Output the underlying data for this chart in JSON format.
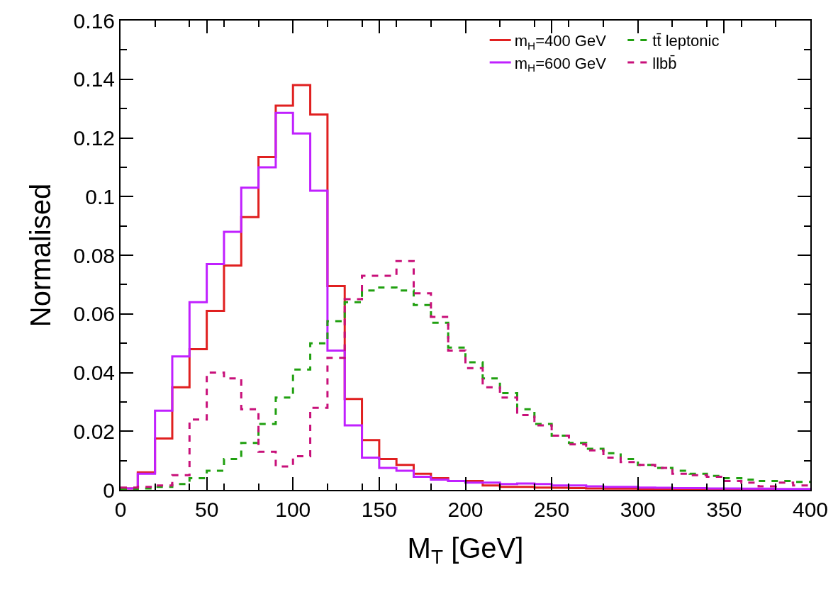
{
  "chart_data": {
    "type": "histogram",
    "xlabel": "M$_{T}$ [GeV]",
    "ylabel": "Normalised",
    "bins": [
      0,
      10,
      20,
      30,
      40,
      50,
      60,
      70,
      80,
      90,
      100,
      110,
      120,
      130,
      140,
      150,
      160,
      170,
      180,
      190,
      200,
      210,
      220,
      230,
      240,
      250,
      260,
      270,
      280,
      290,
      300,
      310,
      320,
      330,
      340,
      350,
      360,
      370,
      380,
      390,
      400
    ],
    "series": [
      {
        "name": "m$_{H}$=400 GeV",
        "color": "#e02020",
        "line_style": "solid",
        "values": [
          0.0005,
          0.006,
          0.0175,
          0.035,
          0.048,
          0.061,
          0.0765,
          0.093,
          0.1135,
          0.131,
          0.138,
          0.128,
          0.0695,
          0.031,
          0.017,
          0.0105,
          0.0085,
          0.0055,
          0.004,
          0.003,
          0.003,
          0.0015,
          0.001,
          0.001,
          0.0008,
          0.0007,
          0.0006,
          0.0005,
          0.0004,
          0.0004,
          0.0003,
          0.0003,
          0.0002,
          0.0002,
          0.0002,
          0.0002,
          0.0001,
          0.0001,
          0.0001,
          0.0001
        ]
      },
      {
        "name": "m$_{H}$=600 GeV",
        "color": "#c020ff",
        "line_style": "solid",
        "values": [
          0.0005,
          0.0055,
          0.027,
          0.0455,
          0.064,
          0.077,
          0.088,
          0.103,
          0.11,
          0.1285,
          0.1215,
          0.102,
          0.0475,
          0.022,
          0.011,
          0.0075,
          0.0065,
          0.0045,
          0.0035,
          0.003,
          0.0025,
          0.0025,
          0.002,
          0.0022,
          0.002,
          0.0015,
          0.0015,
          0.0012,
          0.001,
          0.001,
          0.0008,
          0.0007,
          0.0006,
          0.0006,
          0.0005,
          0.0005,
          0.0004,
          0.0004,
          0.0003,
          0.0003
        ]
      },
      {
        "name": "tt̄ leptonic",
        "color": "#20a010",
        "line_style": "dashed",
        "values": [
          0.0002,
          0.0005,
          0.001,
          0.002,
          0.004,
          0.0065,
          0.0105,
          0.016,
          0.0225,
          0.0315,
          0.041,
          0.05,
          0.0575,
          0.064,
          0.068,
          0.069,
          0.068,
          0.063,
          0.057,
          0.0485,
          0.0435,
          0.038,
          0.033,
          0.0275,
          0.0225,
          0.0185,
          0.016,
          0.014,
          0.0125,
          0.0105,
          0.0085,
          0.0075,
          0.0065,
          0.0055,
          0.0048,
          0.004,
          0.0035,
          0.003,
          0.003,
          0.0027
        ]
      },
      {
        "name": "llbb̄",
        "color": "#c8107a",
        "line_style": "dashed",
        "values": [
          0.0008,
          0.001,
          0.0015,
          0.005,
          0.024,
          0.04,
          0.038,
          0.0275,
          0.013,
          0.008,
          0.0115,
          0.028,
          0.045,
          0.065,
          0.073,
          0.073,
          0.078,
          0.067,
          0.059,
          0.0475,
          0.0415,
          0.035,
          0.0315,
          0.0255,
          0.022,
          0.0185,
          0.0155,
          0.0135,
          0.011,
          0.0095,
          0.0085,
          0.0075,
          0.0055,
          0.005,
          0.0045,
          0.003,
          0.0025,
          0.0012,
          0.0025,
          0.0015
        ]
      }
    ],
    "xlim": [
      0,
      400
    ],
    "xticks": [
      0,
      50,
      100,
      150,
      200,
      250,
      300,
      350,
      400
    ],
    "ylim": [
      0,
      0.16
    ],
    "yticks": [
      0,
      0.02,
      0.04,
      0.06,
      0.08,
      0.1,
      0.12,
      0.14,
      0.16
    ],
    "legend": "top right"
  }
}
